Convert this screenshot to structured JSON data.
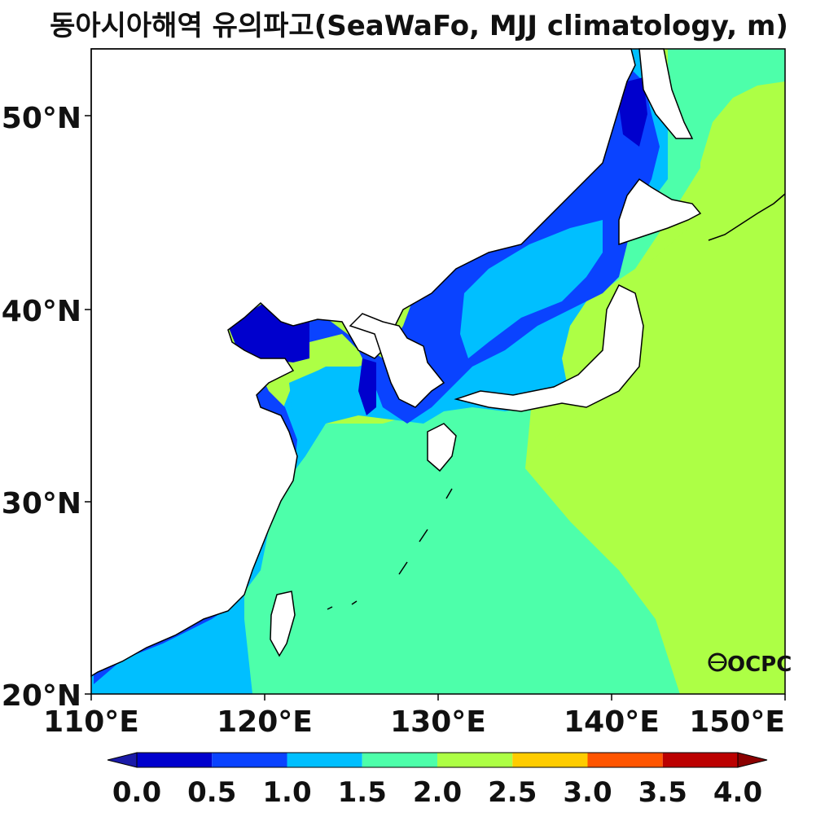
{
  "title": "동아시아해역 유의파고(SeaWaFo, MJJ climatology, m)",
  "logo_text": "OCPC",
  "axes": {
    "x_ticks": [
      "110°E",
      "120°E",
      "130°E",
      "140°E",
      "150°E"
    ],
    "y_ticks": [
      "50°N",
      "40°N",
      "30°N",
      "20°N"
    ]
  },
  "colorbar": {
    "ticks": [
      "0.0",
      "0.5",
      "1.0",
      "1.5",
      "2.0",
      "2.5",
      "3.0",
      "3.5",
      "4.0"
    ],
    "under_color": "#1a1aa8",
    "over_color": "#8b0000",
    "colors": [
      "#0000cd",
      "#0a43ff",
      "#00bfff",
      "#4dffaa",
      "#adff45",
      "#ffcc00",
      "#ff5500",
      "#bb0000"
    ]
  },
  "map_colors": {
    "land": "#ffffff",
    "coast": "#000000",
    "band_0_0_5": "#0000cd",
    "band_0_5_1_0": "#0a43ff",
    "band_1_0_1_5": "#00bfff",
    "band_1_5_2_0": "#4dffaa",
    "band_2_0_2_5": "#adff45"
  }
}
